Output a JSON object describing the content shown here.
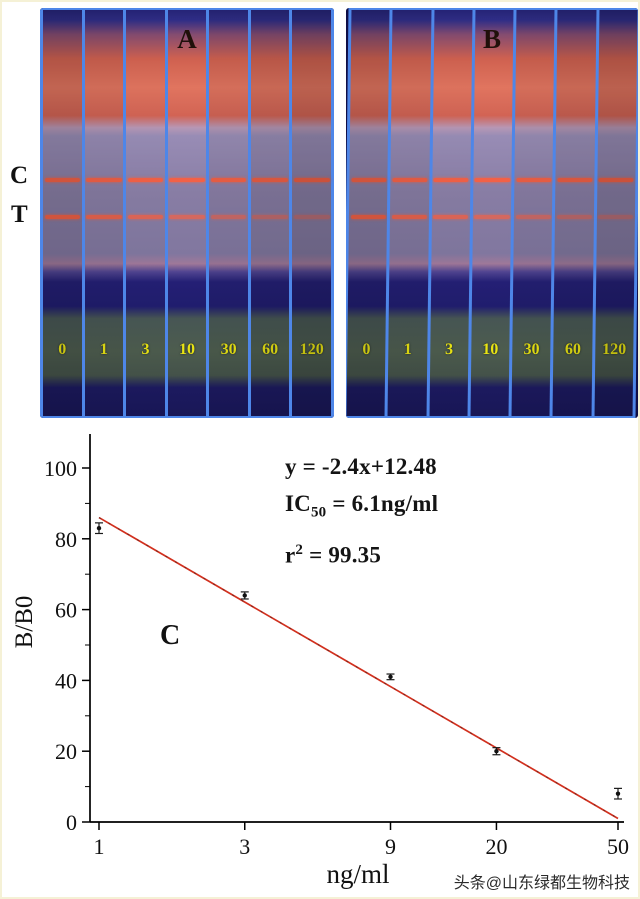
{
  "figure": {
    "panel_a_label": "A",
    "panel_b_label": "B",
    "control_line_label": "C",
    "test_line_label": "T",
    "concentrations": [
      "0",
      "1",
      "3",
      "10",
      "30",
      "60",
      "120"
    ]
  },
  "colors": {
    "separator_blue": "#4e86e8",
    "line_red": "#e05a42",
    "conc_yellow": "#d8d312",
    "fit_red": "#d2301e"
  },
  "chart_data": {
    "type": "scatter",
    "panel_label": "C",
    "x": [
      1,
      3,
      9,
      20,
      50
    ],
    "y": [
      83,
      64,
      41,
      20,
      8
    ],
    "y_err": [
      1.5,
      1,
      0.8,
      1,
      1.5
    ],
    "x_scale": "log",
    "x_ticks": [
      "1",
      "3",
      "9",
      "20",
      "50"
    ],
    "y_ticks": [
      0,
      20,
      40,
      60,
      80,
      100
    ],
    "ylim": [
      0,
      110
    ],
    "xlim": [
      1,
      50
    ],
    "xlabel": "ng/ml",
    "ylabel": "B/B0",
    "grid": false,
    "legend": false,
    "fit_line": {
      "x1": 1,
      "y1": 86,
      "x2": 50,
      "y2": 1,
      "color": "#d2301e"
    },
    "annotation": {
      "equation": "y = -2.4x+12.48",
      "ic50_prefix": "IC",
      "ic50_sub": "50",
      "ic50_rest": " = 6.1ng/ml",
      "r2_prefix": "r",
      "r2_sup": "2",
      "r2_rest": " = 99.35"
    }
  },
  "watermark": "头条@山东绿都生物科技"
}
